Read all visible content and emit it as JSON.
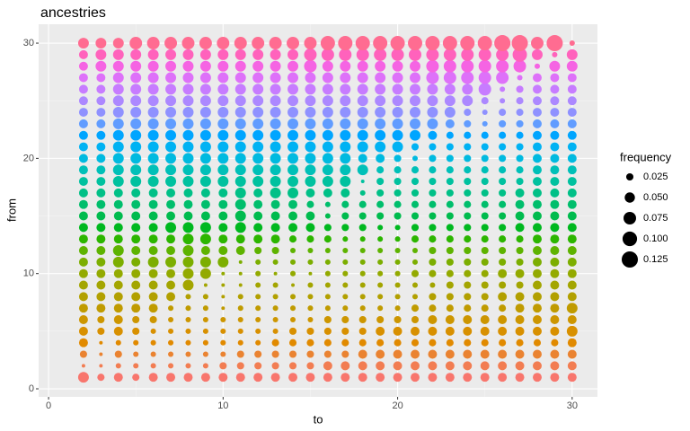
{
  "chart_data": {
    "type": "bubble",
    "title": "ancestries",
    "x_label": "to",
    "y_label": "from",
    "legend_title": "frequency",
    "size_legend": [
      0.025,
      {
        "value": 0.05,
        "label": "0.050"
      },
      0.075,
      {
        "value": 0.1,
        "label": "0.100"
      },
      0.125
    ],
    "xlim": [
      -0.57,
      31.45
    ],
    "ylim": [
      -0.7,
      31.64
    ],
    "xticks": [
      0,
      10,
      20,
      30
    ],
    "yticks": [
      0,
      10,
      20,
      30
    ],
    "grid": true,
    "x": [
      2,
      3,
      4,
      5,
      6,
      7,
      8,
      9,
      10,
      11,
      12,
      13,
      14,
      15,
      16,
      17,
      18,
      19,
      20,
      21,
      22,
      23,
      24,
      25,
      26,
      27,
      28,
      29,
      30
    ],
    "series": [
      {
        "y": 1,
        "color": "#F8766D",
        "values": [
          0.055,
          0.025,
          0.038,
          0.025,
          0.038,
          0.038,
          0.038,
          0.038,
          0.038,
          0.038,
          0.038,
          0.038,
          0.038,
          0.038,
          0.038,
          0.038,
          0.038,
          0.038,
          0.038,
          0.038,
          0.038,
          0.038,
          0.038,
          0.038,
          0.038,
          0.038,
          0.038,
          0.038,
          0.038
        ]
      },
      {
        "y": 2,
        "color": "#F27D52",
        "values": [
          0.006,
          0.006,
          0.014,
          0.014,
          0.014,
          0.014,
          0.014,
          0.014,
          0.025,
          0.025,
          0.025,
          0.025,
          0.025,
          0.025,
          0.038,
          0.038,
          0.038,
          0.038,
          0.038,
          0.038,
          0.038,
          0.038,
          0.038,
          0.038,
          0.038,
          0.038,
          0.038,
          0.038,
          0.038
        ]
      },
      {
        "y": 3,
        "color": "#EA8331",
        "values": [
          0.025,
          0.006,
          0.025,
          0.014,
          0.014,
          0.014,
          0.014,
          0.014,
          0.014,
          0.025,
          0.025,
          0.025,
          0.025,
          0.025,
          0.025,
          0.025,
          0.038,
          0.038,
          0.038,
          0.038,
          0.038,
          0.038,
          0.038,
          0.038,
          0.038,
          0.038,
          0.038,
          0.038,
          0.038
        ]
      },
      {
        "y": 4,
        "color": "#E18A00",
        "values": [
          0.038,
          0.006,
          0.014,
          0.014,
          0.014,
          0.014,
          0.014,
          0.014,
          0.014,
          0.014,
          0.014,
          0.025,
          0.025,
          0.025,
          0.025,
          0.025,
          0.025,
          0.025,
          0.025,
          0.025,
          0.025,
          0.025,
          0.025,
          0.025,
          0.025,
          0.025,
          0.025,
          0.025,
          0.038
        ]
      },
      {
        "y": 5,
        "color": "#D89000",
        "values": [
          0.038,
          0.025,
          0.038,
          0.025,
          0.014,
          0.014,
          0.014,
          0.014,
          0.014,
          0.014,
          0.014,
          0.014,
          0.025,
          0.025,
          0.025,
          0.025,
          0.025,
          0.038,
          0.038,
          0.038,
          0.038,
          0.038,
          0.038,
          0.038,
          0.038,
          0.038,
          0.038,
          0.038,
          0.055
        ]
      },
      {
        "y": 6,
        "color": "#CD9600",
        "values": [
          0.038,
          0.025,
          0.038,
          0.025,
          0.025,
          0.014,
          0.014,
          0.014,
          0.014,
          0.014,
          0.014,
          0.014,
          0.014,
          0.014,
          0.025,
          0.025,
          0.025,
          0.025,
          0.025,
          0.025,
          0.038,
          0.038,
          0.038,
          0.038,
          0.038,
          0.038,
          0.038,
          0.038,
          0.038
        ]
      },
      {
        "y": 7,
        "color": "#C09B00",
        "values": [
          0.038,
          0.038,
          0.038,
          0.038,
          0.038,
          0.014,
          0.014,
          0.014,
          0.006,
          0.014,
          0.014,
          0.014,
          0.014,
          0.014,
          0.014,
          0.014,
          0.014,
          0.014,
          0.014,
          0.025,
          0.025,
          0.025,
          0.025,
          0.025,
          0.025,
          0.038,
          0.038,
          0.038,
          0.055
        ]
      },
      {
        "y": 8,
        "color": "#B2A000",
        "values": [
          0.038,
          0.038,
          0.038,
          0.038,
          0.038,
          0.038,
          0.014,
          0.014,
          0.006,
          0.014,
          0.014,
          0.014,
          0.014,
          0.014,
          0.014,
          0.014,
          0.014,
          0.014,
          0.014,
          0.014,
          0.025,
          0.025,
          0.025,
          0.025,
          0.038,
          0.038,
          0.038,
          0.038,
          0.038
        ]
      },
      {
        "y": 9,
        "color": "#A3A500",
        "values": [
          0.038,
          0.038,
          0.038,
          0.038,
          0.038,
          0.038,
          0.055,
          0.006,
          0.006,
          0.006,
          0.014,
          0.014,
          0.006,
          0.014,
          0.014,
          0.014,
          0.014,
          0.014,
          0.014,
          0.014,
          0.014,
          0.025,
          0.025,
          0.025,
          0.025,
          0.025,
          0.038,
          0.038,
          0.038
        ]
      },
      {
        "y": 10,
        "color": "#93AA00",
        "values": [
          0.038,
          0.038,
          0.038,
          0.038,
          0.038,
          0.038,
          0.055,
          0.055,
          0.006,
          0.006,
          0.014,
          0.006,
          0.014,
          0.006,
          0.014,
          0.014,
          0.014,
          0.014,
          0.014,
          0.025,
          0.025,
          0.025,
          0.025,
          0.025,
          0.038,
          0.038,
          0.038,
          0.038,
          0.038
        ]
      },
      {
        "y": 11,
        "color": "#7CAE00",
        "values": [
          0.038,
          0.038,
          0.055,
          0.038,
          0.055,
          0.055,
          0.055,
          0.055,
          0.055,
          0.006,
          0.014,
          0.014,
          0.014,
          0.014,
          0.014,
          0.014,
          0.014,
          0.014,
          0.014,
          0.014,
          0.025,
          0.025,
          0.025,
          0.025,
          0.025,
          0.025,
          0.038,
          0.038,
          0.038
        ]
      },
      {
        "y": 12,
        "color": "#5EB300",
        "values": [
          0.038,
          0.038,
          0.055,
          0.038,
          0.038,
          0.038,
          0.055,
          0.038,
          0.038,
          0.038,
          0.025,
          0.025,
          0.014,
          0.014,
          0.014,
          0.014,
          0.014,
          0.014,
          0.014,
          0.014,
          0.025,
          0.025,
          0.025,
          0.025,
          0.025,
          0.025,
          0.038,
          0.038,
          0.038
        ]
      },
      {
        "y": 13,
        "color": "#2CB600",
        "values": [
          0.038,
          0.038,
          0.038,
          0.038,
          0.038,
          0.038,
          0.055,
          0.055,
          0.038,
          0.038,
          0.038,
          0.038,
          0.025,
          0.025,
          0.025,
          0.014,
          0.014,
          0.014,
          0.014,
          0.025,
          0.025,
          0.025,
          0.025,
          0.025,
          0.025,
          0.025,
          0.038,
          0.038,
          0.038
        ]
      },
      {
        "y": 14,
        "color": "#00B81F",
        "values": [
          0.038,
          0.038,
          0.038,
          0.038,
          0.038,
          0.055,
          0.055,
          0.055,
          0.038,
          0.055,
          0.038,
          0.038,
          0.038,
          0.038,
          0.025,
          0.025,
          0.025,
          0.014,
          0.014,
          0.025,
          0.025,
          0.025,
          0.025,
          0.025,
          0.025,
          0.038,
          0.038,
          0.038,
          0.038
        ]
      },
      {
        "y": 15,
        "color": "#00BB4E",
        "values": [
          0.038,
          0.038,
          0.038,
          0.038,
          0.038,
          0.038,
          0.038,
          0.038,
          0.038,
          0.055,
          0.038,
          0.038,
          0.038,
          0.038,
          0.014,
          0.025,
          0.025,
          0.025,
          0.025,
          0.025,
          0.025,
          0.025,
          0.025,
          0.025,
          0.025,
          0.038,
          0.038,
          0.038,
          0.038
        ]
      },
      {
        "y": 16,
        "color": "#00BE6C",
        "values": [
          0.038,
          0.038,
          0.038,
          0.038,
          0.038,
          0.038,
          0.038,
          0.038,
          0.038,
          0.055,
          0.038,
          0.038,
          0.038,
          0.025,
          0.014,
          0.025,
          0.025,
          0.025,
          0.025,
          0.025,
          0.025,
          0.025,
          0.025,
          0.025,
          0.025,
          0.038,
          0.038,
          0.038,
          0.038
        ]
      },
      {
        "y": 17,
        "color": "#00C087",
        "values": [
          0.038,
          0.038,
          0.038,
          0.038,
          0.038,
          0.038,
          0.038,
          0.038,
          0.038,
          0.055,
          0.038,
          0.055,
          0.055,
          0.038,
          0.038,
          0.038,
          0.014,
          0.025,
          0.025,
          0.025,
          0.025,
          0.025,
          0.025,
          0.025,
          0.025,
          0.038,
          0.038,
          0.038,
          0.038
        ]
      },
      {
        "y": 18,
        "color": "#00C19F",
        "values": [
          0.038,
          0.038,
          0.055,
          0.055,
          0.055,
          0.055,
          0.055,
          0.055,
          0.055,
          0.055,
          0.055,
          0.055,
          0.055,
          0.055,
          0.055,
          0.055,
          0.006,
          0.025,
          0.025,
          0.025,
          0.025,
          0.025,
          0.025,
          0.025,
          0.025,
          0.025,
          0.038,
          0.038,
          0.038
        ]
      },
      {
        "y": 19,
        "color": "#00C0B8",
        "values": [
          0.038,
          0.038,
          0.055,
          0.055,
          0.055,
          0.055,
          0.055,
          0.055,
          0.055,
          0.055,
          0.055,
          0.055,
          0.055,
          0.055,
          0.055,
          0.055,
          0.055,
          0.025,
          0.025,
          0.025,
          0.025,
          0.025,
          0.025,
          0.025,
          0.025,
          0.025,
          0.038,
          0.038,
          0.038
        ]
      },
      {
        "y": 20,
        "color": "#00BAE0",
        "values": [
          0.038,
          0.038,
          0.055,
          0.055,
          0.055,
          0.055,
          0.055,
          0.055,
          0.055,
          0.055,
          0.055,
          0.055,
          0.055,
          0.055,
          0.055,
          0.055,
          0.038,
          0.038,
          0.025,
          0.014,
          0.025,
          0.025,
          0.025,
          0.025,
          0.025,
          0.025,
          0.038,
          0.038,
          0.038
        ]
      },
      {
        "y": 21,
        "color": "#00B2F3",
        "values": [
          0.038,
          0.038,
          0.055,
          0.055,
          0.055,
          0.055,
          0.055,
          0.055,
          0.055,
          0.055,
          0.055,
          0.055,
          0.055,
          0.055,
          0.055,
          0.055,
          0.055,
          0.055,
          0.055,
          0.025,
          0.025,
          0.025,
          0.025,
          0.025,
          0.025,
          0.025,
          0.038,
          0.038,
          0.038
        ]
      },
      {
        "y": 22,
        "color": "#00A5FF",
        "values": [
          0.038,
          0.038,
          0.055,
          0.055,
          0.055,
          0.055,
          0.055,
          0.055,
          0.055,
          0.055,
          0.055,
          0.055,
          0.055,
          0.055,
          0.055,
          0.055,
          0.055,
          0.055,
          0.055,
          0.055,
          0.038,
          0.025,
          0.025,
          0.025,
          0.025,
          0.025,
          0.038,
          0.038,
          0.038
        ]
      },
      {
        "y": 23,
        "color": "#619CFF",
        "values": [
          0.038,
          0.038,
          0.055,
          0.055,
          0.055,
          0.055,
          0.055,
          0.055,
          0.055,
          0.055,
          0.055,
          0.055,
          0.055,
          0.055,
          0.055,
          0.055,
          0.055,
          0.055,
          0.055,
          0.055,
          0.055,
          0.038,
          0.025,
          0.014,
          0.025,
          0.025,
          0.038,
          0.038,
          0.038
        ]
      },
      {
        "y": 24,
        "color": "#8F91FF",
        "values": [
          0.038,
          0.038,
          0.055,
          0.055,
          0.055,
          0.055,
          0.055,
          0.055,
          0.055,
          0.055,
          0.055,
          0.055,
          0.055,
          0.055,
          0.055,
          0.055,
          0.055,
          0.055,
          0.055,
          0.055,
          0.055,
          0.055,
          0.025,
          0.014,
          0.025,
          0.025,
          0.038,
          0.038,
          0.038
        ]
      },
      {
        "y": 25,
        "color": "#AC88FF",
        "values": [
          0.038,
          0.038,
          0.055,
          0.055,
          0.055,
          0.055,
          0.055,
          0.055,
          0.055,
          0.055,
          0.055,
          0.055,
          0.055,
          0.055,
          0.055,
          0.055,
          0.055,
          0.055,
          0.055,
          0.055,
          0.055,
          0.055,
          0.055,
          0.025,
          0.014,
          0.025,
          0.038,
          0.038,
          0.038
        ]
      },
      {
        "y": 26,
        "color": "#C77CFF",
        "values": [
          0.038,
          0.038,
          0.055,
          0.055,
          0.055,
          0.055,
          0.055,
          0.055,
          0.055,
          0.055,
          0.055,
          0.055,
          0.055,
          0.055,
          0.055,
          0.055,
          0.055,
          0.055,
          0.055,
          0.055,
          0.055,
          0.055,
          0.055,
          0.075,
          0.014,
          0.025,
          0.038,
          0.038,
          0.038
        ]
      },
      {
        "y": 27,
        "color": "#DE71F9",
        "values": [
          0.038,
          0.038,
          0.055,
          0.055,
          0.055,
          0.055,
          0.055,
          0.055,
          0.055,
          0.055,
          0.055,
          0.055,
          0.055,
          0.055,
          0.055,
          0.055,
          0.055,
          0.055,
          0.055,
          0.055,
          0.075,
          0.075,
          0.075,
          0.075,
          0.075,
          0.014,
          0.038,
          0.038,
          0.038
        ]
      },
      {
        "y": 28,
        "color": "#F564E3",
        "values": [
          0.038,
          0.055,
          0.055,
          0.055,
          0.055,
          0.055,
          0.055,
          0.055,
          0.055,
          0.055,
          0.055,
          0.055,
          0.055,
          0.075,
          0.055,
          0.055,
          0.055,
          0.055,
          0.055,
          0.055,
          0.075,
          0.075,
          0.075,
          0.075,
          0.075,
          0.075,
          0.014,
          0.055,
          0.055
        ]
      },
      {
        "y": 29,
        "color": "#FF62BC",
        "values": [
          0.038,
          0.055,
          0.055,
          0.055,
          0.055,
          0.055,
          0.055,
          0.055,
          0.055,
          0.055,
          0.055,
          0.055,
          0.055,
          0.075,
          0.075,
          0.075,
          0.075,
          0.075,
          0.075,
          0.075,
          0.075,
          0.075,
          0.075,
          0.075,
          0.075,
          0.098,
          0.055,
          0.014,
          0.055
        ]
      },
      {
        "y": 30,
        "color": "#FF6C91",
        "values": [
          0.055,
          0.055,
          0.055,
          0.075,
          0.075,
          0.075,
          0.075,
          0.075,
          0.075,
          0.075,
          0.075,
          0.075,
          0.075,
          0.075,
          0.098,
          0.098,
          0.098,
          0.098,
          0.098,
          0.098,
          0.098,
          0.098,
          0.098,
          0.098,
          0.125,
          0.125,
          0.075,
          0.125,
          0.014
        ]
      }
    ]
  }
}
